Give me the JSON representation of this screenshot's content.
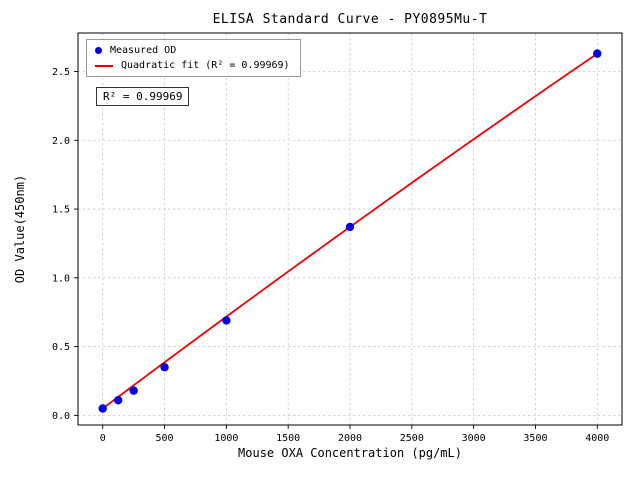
{
  "chart_data": {
    "type": "scatter",
    "title": "ELISA Standard Curve - PY0895Mu-T",
    "xlabel": "Mouse OXA Concentration (pg/mL)",
    "ylabel": "OD Value(450nm)",
    "xlim": [
      -200,
      4200
    ],
    "ylim": [
      -0.07,
      2.78
    ],
    "x_ticks": [
      0,
      500,
      1000,
      1500,
      2000,
      2500,
      3000,
      3500,
      4000
    ],
    "y_ticks": [
      0.0,
      0.5,
      1.0,
      1.5,
      2.0,
      2.5
    ],
    "grid": true,
    "grid_color": "#c9c9c9",
    "legend_position": "upper left",
    "annotation": "R² = 0.99969",
    "series": [
      {
        "name": "Measured OD",
        "type": "scatter",
        "color": "#0000e0",
        "x": [
          0,
          125,
          250,
          500,
          1000,
          2000,
          4000
        ],
        "y": [
          0.05,
          0.11,
          0.18,
          0.35,
          0.69,
          1.37,
          2.63
        ]
      },
      {
        "name": "Quadratic fit (R² = 0.99969)",
        "type": "line",
        "color": "#ee0000",
        "fit_coefficients": {
          "a": 0.05,
          "b": 0.000675,
          "c": -7.5e-09
        },
        "x_range": [
          0,
          4000
        ]
      }
    ]
  }
}
